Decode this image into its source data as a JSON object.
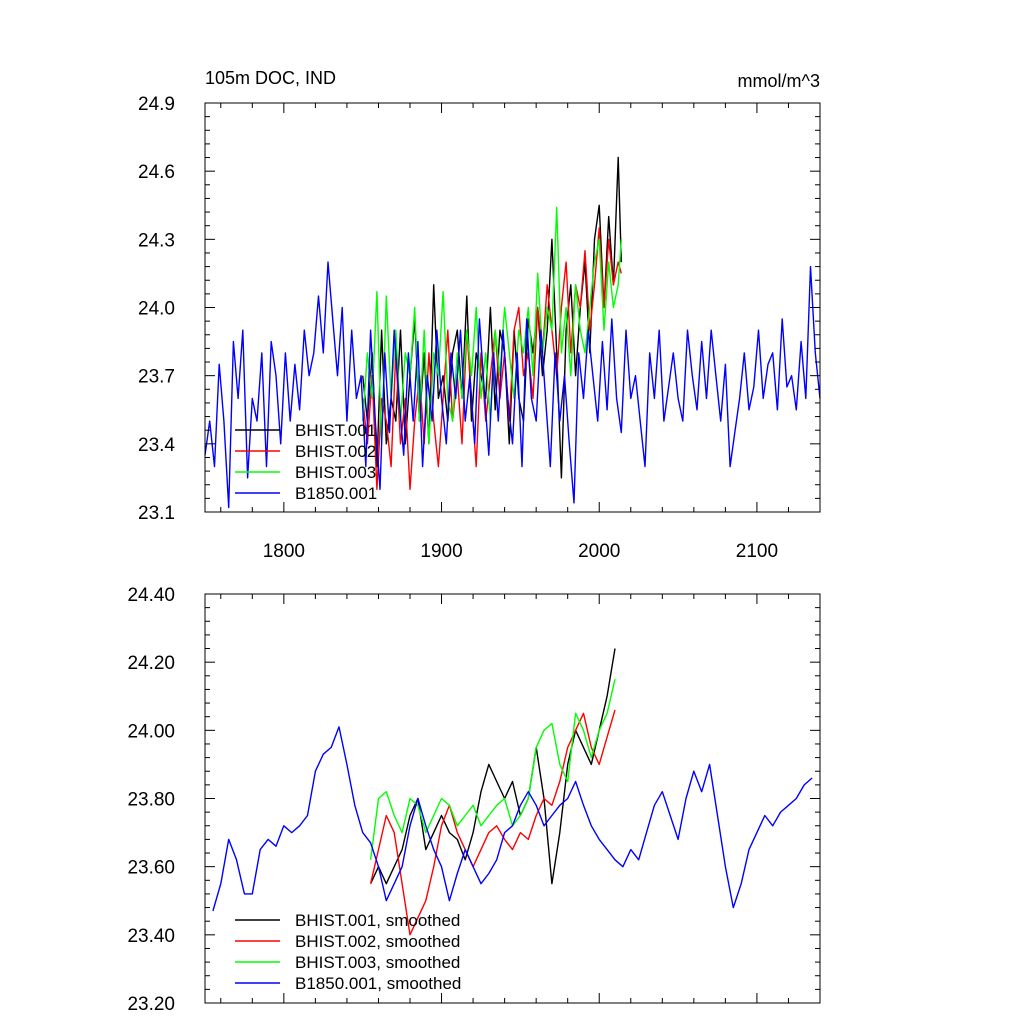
{
  "chart_data": [
    {
      "type": "line",
      "title": "105m DOC, IND",
      "units": "mmol/m^3",
      "xlim": [
        1750,
        2140
      ],
      "ylim": [
        23.1,
        24.9
      ],
      "xticks": [
        1800,
        1900,
        2000,
        2100
      ],
      "xtick_labels": [
        "1800",
        "1900",
        "2000",
        "2100"
      ],
      "yticks": [
        23.1,
        23.4,
        23.7,
        24.0,
        24.3,
        24.6,
        24.9
      ],
      "ytick_labels": [
        "23.1",
        "23.4",
        "23.7",
        "24.0",
        "24.3",
        "24.6",
        "24.9"
      ],
      "legend_position": "bottom-left",
      "series": [
        {
          "name": "BHIST.001",
          "color": "#000000",
          "x": [
            1850,
            1853,
            1856,
            1859,
            1862,
            1865,
            1868,
            1871,
            1874,
            1877,
            1880,
            1883,
            1886,
            1889,
            1892,
            1895,
            1898,
            1901,
            1904,
            1907,
            1910,
            1913,
            1916,
            1919,
            1922,
            1925,
            1928,
            1931,
            1934,
            1937,
            1940,
            1943,
            1946,
            1949,
            1952,
            1955,
            1958,
            1961,
            1964,
            1967,
            1970,
            1973,
            1976,
            1979,
            1982,
            1985,
            1988,
            1991,
            1994,
            1997,
            2000,
            2003,
            2006,
            2009,
            2012,
            2014
          ],
          "values": [
            23.7,
            23.5,
            23.8,
            23.3,
            23.9,
            23.4,
            23.6,
            23.5,
            23.9,
            23.4,
            23.7,
            23.95,
            23.5,
            23.8,
            23.4,
            24.1,
            23.6,
            23.7,
            23.5,
            23.8,
            23.9,
            23.6,
            24.05,
            23.5,
            23.8,
            23.7,
            23.6,
            24.0,
            23.55,
            23.9,
            23.8,
            23.4,
            23.9,
            23.6,
            23.5,
            23.95,
            23.8,
            24.0,
            23.7,
            23.9,
            24.3,
            23.8,
            23.25,
            23.9,
            24.1,
            23.7,
            24.0,
            24.2,
            23.8,
            24.3,
            24.45,
            24.0,
            24.4,
            24.1,
            24.66,
            24.2
          ]
        },
        {
          "name": "BHIST.002",
          "color": "#ff0000",
          "x": [
            1850,
            1853,
            1856,
            1859,
            1862,
            1865,
            1868,
            1871,
            1874,
            1877,
            1880,
            1883,
            1886,
            1889,
            1892,
            1895,
            1898,
            1901,
            1904,
            1907,
            1910,
            1913,
            1916,
            1919,
            1922,
            1925,
            1928,
            1931,
            1934,
            1937,
            1940,
            1943,
            1946,
            1949,
            1952,
            1955,
            1958,
            1961,
            1964,
            1967,
            1970,
            1973,
            1976,
            1979,
            1982,
            1985,
            1988,
            1991,
            1994,
            1997,
            2000,
            2003,
            2006,
            2009,
            2012,
            2014
          ],
          "values": [
            23.6,
            23.4,
            23.7,
            23.2,
            23.6,
            23.5,
            23.3,
            23.8,
            23.4,
            23.6,
            23.2,
            23.5,
            23.7,
            23.4,
            23.8,
            23.5,
            23.3,
            23.6,
            23.9,
            23.5,
            23.7,
            23.4,
            23.9,
            23.6,
            23.3,
            23.8,
            23.5,
            23.7,
            23.9,
            23.6,
            23.8,
            23.5,
            23.9,
            24.0,
            23.7,
            23.8,
            23.6,
            24.0,
            23.8,
            24.1,
            23.9,
            23.7,
            24.0,
            24.2,
            23.8,
            24.1,
            24.0,
            24.25,
            23.9,
            24.1,
            24.35,
            24.0,
            24.3,
            24.1,
            24.2,
            24.15
          ]
        },
        {
          "name": "BHIST.003",
          "color": "#00ff00",
          "x": [
            1850,
            1853,
            1856,
            1859,
            1862,
            1865,
            1868,
            1871,
            1874,
            1877,
            1880,
            1883,
            1886,
            1889,
            1892,
            1895,
            1898,
            1901,
            1904,
            1907,
            1910,
            1913,
            1916,
            1919,
            1922,
            1925,
            1928,
            1931,
            1934,
            1937,
            1940,
            1943,
            1946,
            1949,
            1952,
            1955,
            1958,
            1961,
            1964,
            1967,
            1970,
            1973,
            1976,
            1979,
            1982,
            1985,
            1988,
            1991,
            1994,
            1997,
            2000,
            2003,
            2006,
            2009,
            2012,
            2014
          ],
          "values": [
            23.5,
            23.8,
            23.6,
            24.07,
            23.4,
            24.05,
            23.6,
            23.9,
            23.5,
            23.8,
            23.7,
            24.0,
            23.5,
            23.9,
            23.4,
            23.8,
            23.7,
            24.07,
            23.6,
            23.5,
            23.8,
            23.6,
            23.9,
            23.7,
            24.0,
            23.6,
            23.8,
            23.5,
            23.9,
            23.7,
            24.0,
            23.8,
            23.6,
            23.9,
            23.8,
            24.0,
            23.7,
            24.15,
            23.8,
            24.0,
            23.9,
            24.44,
            23.8,
            24.0,
            23.7,
            24.1,
            23.9,
            23.8,
            24.0,
            24.2,
            24.3,
            23.9,
            24.2,
            24.0,
            24.1,
            24.3
          ]
        },
        {
          "name": "B1850.001",
          "color": "#0000ff",
          "x": [
            1750,
            1753,
            1756,
            1759,
            1762,
            1765,
            1768,
            1771,
            1774,
            1777,
            1780,
            1783,
            1786,
            1789,
            1792,
            1795,
            1798,
            1801,
            1804,
            1807,
            1810,
            1813,
            1816,
            1819,
            1822,
            1825,
            1828,
            1831,
            1834,
            1837,
            1840,
            1843,
            1846,
            1849,
            1852,
            1855,
            1858,
            1861,
            1864,
            1867,
            1870,
            1873,
            1876,
            1879,
            1882,
            1885,
            1888,
            1891,
            1894,
            1897,
            1900,
            1903,
            1906,
            1909,
            1912,
            1915,
            1918,
            1921,
            1924,
            1927,
            1930,
            1933,
            1936,
            1939,
            1942,
            1945,
            1948,
            1951,
            1954,
            1957,
            1960,
            1963,
            1966,
            1969,
            1972,
            1975,
            1978,
            1981,
            1984,
            1987,
            1990,
            1993,
            1996,
            1999,
            2002,
            2005,
            2008,
            2011,
            2014,
            2017,
            2020,
            2023,
            2026,
            2029,
            2032,
            2035,
            2038,
            2041,
            2044,
            2047,
            2050,
            2053,
            2056,
            2059,
            2062,
            2065,
            2068,
            2071,
            2074,
            2077,
            2080,
            2083,
            2086,
            2089,
            2092,
            2095,
            2098,
            2101,
            2104,
            2107,
            2110,
            2113,
            2116,
            2119,
            2122,
            2125,
            2128,
            2131,
            2134,
            2137,
            2140
          ],
          "values": [
            23.35,
            23.5,
            23.3,
            23.75,
            23.5,
            23.12,
            23.85,
            23.6,
            23.9,
            23.25,
            23.6,
            23.5,
            23.8,
            23.3,
            23.85,
            23.7,
            23.4,
            23.8,
            23.5,
            23.75,
            23.55,
            23.9,
            23.7,
            23.8,
            24.05,
            23.8,
            24.2,
            23.95,
            23.7,
            24.0,
            23.5,
            23.9,
            23.6,
            23.7,
            23.3,
            23.9,
            23.5,
            23.2,
            23.8,
            23.45,
            23.9,
            23.6,
            23.35,
            23.8,
            23.5,
            23.85,
            23.3,
            23.7,
            23.5,
            23.9,
            23.6,
            23.4,
            23.8,
            23.6,
            23.9,
            23.5,
            23.7,
            23.4,
            23.95,
            23.65,
            23.35,
            23.8,
            23.5,
            23.9,
            23.6,
            23.4,
            23.8,
            23.3,
            23.95,
            23.6,
            23.5,
            23.9,
            23.6,
            23.3,
            23.8,
            23.5,
            23.7,
            23.4,
            23.14,
            23.8,
            23.6,
            23.9,
            23.7,
            23.5,
            23.85,
            23.55,
            23.95,
            23.6,
            23.45,
            23.9,
            23.6,
            23.7,
            23.5,
            23.3,
            23.8,
            23.6,
            23.9,
            23.5,
            23.65,
            23.8,
            23.6,
            23.5,
            23.9,
            23.7,
            23.55,
            23.85,
            23.6,
            23.9,
            23.7,
            23.5,
            23.75,
            23.3,
            23.45,
            23.6,
            23.8,
            23.55,
            23.65,
            23.9,
            23.6,
            23.75,
            23.8,
            23.55,
            23.95,
            23.65,
            23.7,
            23.55,
            23.85,
            23.6,
            24.18,
            23.8,
            23.6
          ]
        }
      ]
    },
    {
      "type": "line",
      "title": "",
      "xlim": [
        1750,
        2140
      ],
      "ylim": [
        23.2,
        24.4
      ],
      "xticks": [
        1800,
        1900,
        2000,
        2100
      ],
      "yticks": [
        23.2,
        23.4,
        23.6,
        23.8,
        24.0,
        24.2,
        24.4
      ],
      "ytick_labels": [
        "23.20",
        "23.40",
        "23.60",
        "23.80",
        "24.00",
        "24.20",
        "24.40"
      ],
      "legend_position": "bottom-left",
      "series": [
        {
          "name": "BHIST.001, smoothed",
          "color": "#000000",
          "x": [
            1855,
            1860,
            1865,
            1870,
            1875,
            1880,
            1885,
            1890,
            1895,
            1900,
            1905,
            1910,
            1915,
            1920,
            1925,
            1930,
            1935,
            1940,
            1945,
            1950,
            1955,
            1960,
            1965,
            1970,
            1975,
            1980,
            1985,
            1990,
            1995,
            2000,
            2005,
            2010
          ],
          "values": [
            23.55,
            23.6,
            23.55,
            23.6,
            23.65,
            23.75,
            23.8,
            23.65,
            23.7,
            23.75,
            23.7,
            23.68,
            23.62,
            23.7,
            23.82,
            23.9,
            23.85,
            23.8,
            23.85,
            23.75,
            23.8,
            23.95,
            23.8,
            23.55,
            23.7,
            23.9,
            24.0,
            23.95,
            23.9,
            24.0,
            24.1,
            24.24
          ]
        },
        {
          "name": "BHIST.002, smoothed",
          "color": "#ff0000",
          "x": [
            1855,
            1860,
            1865,
            1870,
            1875,
            1880,
            1885,
            1890,
            1895,
            1900,
            1905,
            1910,
            1915,
            1920,
            1925,
            1930,
            1935,
            1940,
            1945,
            1950,
            1955,
            1960,
            1965,
            1970,
            1975,
            1980,
            1985,
            1990,
            1995,
            2000,
            2005,
            2010
          ],
          "values": [
            23.55,
            23.65,
            23.75,
            23.7,
            23.55,
            23.4,
            23.45,
            23.5,
            23.6,
            23.72,
            23.78,
            23.7,
            23.65,
            23.6,
            23.65,
            23.7,
            23.72,
            23.68,
            23.65,
            23.7,
            23.68,
            23.75,
            23.8,
            23.78,
            23.85,
            23.95,
            24.0,
            24.05,
            23.95,
            23.9,
            23.98,
            24.06
          ]
        },
        {
          "name": "BHIST.003, smoothed",
          "color": "#00ff00",
          "x": [
            1855,
            1860,
            1865,
            1870,
            1875,
            1880,
            1885,
            1890,
            1895,
            1900,
            1905,
            1910,
            1915,
            1920,
            1925,
            1930,
            1935,
            1940,
            1945,
            1950,
            1955,
            1960,
            1965,
            1970,
            1975,
            1980,
            1985,
            1990,
            1995,
            2000,
            2005,
            2010
          ],
          "values": [
            23.62,
            23.8,
            23.82,
            23.75,
            23.7,
            23.8,
            23.78,
            23.7,
            23.75,
            23.8,
            23.78,
            23.72,
            23.75,
            23.78,
            23.72,
            23.75,
            23.78,
            23.8,
            23.72,
            23.75,
            23.8,
            23.95,
            24.0,
            24.02,
            23.9,
            23.85,
            24.05,
            24.0,
            23.92,
            24.0,
            24.05,
            24.15
          ]
        },
        {
          "name": "B1850.001, smoothed",
          "color": "#0000ff",
          "x": [
            1755,
            1760,
            1765,
            1770,
            1775,
            1780,
            1785,
            1790,
            1795,
            1800,
            1805,
            1810,
            1815,
            1820,
            1825,
            1830,
            1835,
            1840,
            1845,
            1850,
            1855,
            1860,
            1865,
            1870,
            1875,
            1880,
            1885,
            1890,
            1895,
            1900,
            1905,
            1910,
            1915,
            1920,
            1925,
            1930,
            1935,
            1940,
            1945,
            1950,
            1955,
            1960,
            1965,
            1970,
            1975,
            1980,
            1985,
            1990,
            1995,
            2000,
            2005,
            2010,
            2015,
            2020,
            2025,
            2030,
            2035,
            2040,
            2045,
            2050,
            2055,
            2060,
            2065,
            2070,
            2075,
            2080,
            2085,
            2090,
            2095,
            2100,
            2105,
            2110,
            2115,
            2120,
            2125,
            2130,
            2135
          ],
          "values": [
            23.47,
            23.55,
            23.68,
            23.62,
            23.52,
            23.52,
            23.65,
            23.68,
            23.66,
            23.72,
            23.7,
            23.72,
            23.75,
            23.88,
            23.93,
            23.95,
            24.01,
            23.9,
            23.78,
            23.7,
            23.67,
            23.6,
            23.5,
            23.55,
            23.6,
            23.72,
            23.8,
            23.72,
            23.65,
            23.6,
            23.5,
            23.58,
            23.65,
            23.6,
            23.55,
            23.58,
            23.62,
            23.7,
            23.72,
            23.78,
            23.82,
            23.78,
            23.72,
            23.75,
            23.78,
            23.8,
            23.85,
            23.78,
            23.72,
            23.68,
            23.65,
            23.62,
            23.6,
            23.65,
            23.62,
            23.7,
            23.78,
            23.82,
            23.75,
            23.68,
            23.8,
            23.88,
            23.82,
            23.9,
            23.75,
            23.6,
            23.48,
            23.55,
            23.65,
            23.7,
            23.75,
            23.72,
            23.76,
            23.78,
            23.8,
            23.84,
            23.86
          ]
        }
      ]
    }
  ]
}
